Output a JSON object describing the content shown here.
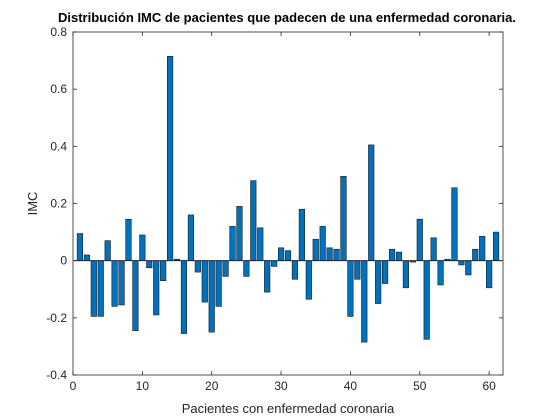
{
  "chart_data": {
    "type": "bar",
    "title": "Distribución IMC de pacientes que padecen de una enfermedad coronaria.",
    "xlabel": "Pacientes con enfermedad coronaria",
    "ylabel": "IMC",
    "xlim": [
      0,
      62
    ],
    "ylim": [
      -0.4,
      0.8
    ],
    "xticks": [
      0,
      10,
      20,
      30,
      40,
      50,
      60
    ],
    "yticks": [
      -0.4,
      -0.2,
      0,
      0.2,
      0.4,
      0.6,
      0.8
    ],
    "xtick_labels": [
      "0",
      "10",
      "20",
      "30",
      "40",
      "50",
      "60"
    ],
    "ytick_labels": [
      "-0.4",
      "-0.2",
      "0",
      "0.2",
      "0.4",
      "0.6",
      "0.8"
    ],
    "bar_color": "#0072BD",
    "edge_color": "#1a1a1a",
    "grid": false,
    "x": [
      1,
      2,
      3,
      4,
      5,
      6,
      7,
      8,
      9,
      10,
      11,
      12,
      13,
      14,
      15,
      16,
      17,
      18,
      19,
      20,
      21,
      22,
      23,
      24,
      25,
      26,
      27,
      28,
      29,
      30,
      31,
      32,
      33,
      34,
      35,
      36,
      37,
      38,
      39,
      40,
      41,
      42,
      43,
      44,
      45,
      46,
      47,
      48,
      49,
      50,
      51,
      52,
      53,
      54,
      55,
      56,
      57,
      58,
      59,
      60,
      61
    ],
    "values": [
      0.095,
      0.02,
      -0.195,
      -0.195,
      0.07,
      -0.16,
      -0.155,
      0.145,
      -0.245,
      0.09,
      -0.025,
      -0.19,
      -0.07,
      0.715,
      0.005,
      -0.255,
      0.16,
      -0.04,
      -0.145,
      -0.25,
      -0.16,
      -0.055,
      0.12,
      0.19,
      -0.055,
      0.28,
      0.115,
      -0.11,
      -0.02,
      0.045,
      0.035,
      -0.065,
      0.18,
      -0.135,
      0.075,
      0.12,
      0.045,
      0.04,
      0.295,
      -0.195,
      -0.065,
      -0.285,
      0.405,
      -0.15,
      -0.08,
      0.04,
      0.03,
      -0.095,
      -0.005,
      0.145,
      -0.275,
      0.08,
      -0.085,
      0.005,
      0.255,
      -0.015,
      -0.05,
      0.04,
      0.085,
      -0.095,
      0.1
    ]
  }
}
